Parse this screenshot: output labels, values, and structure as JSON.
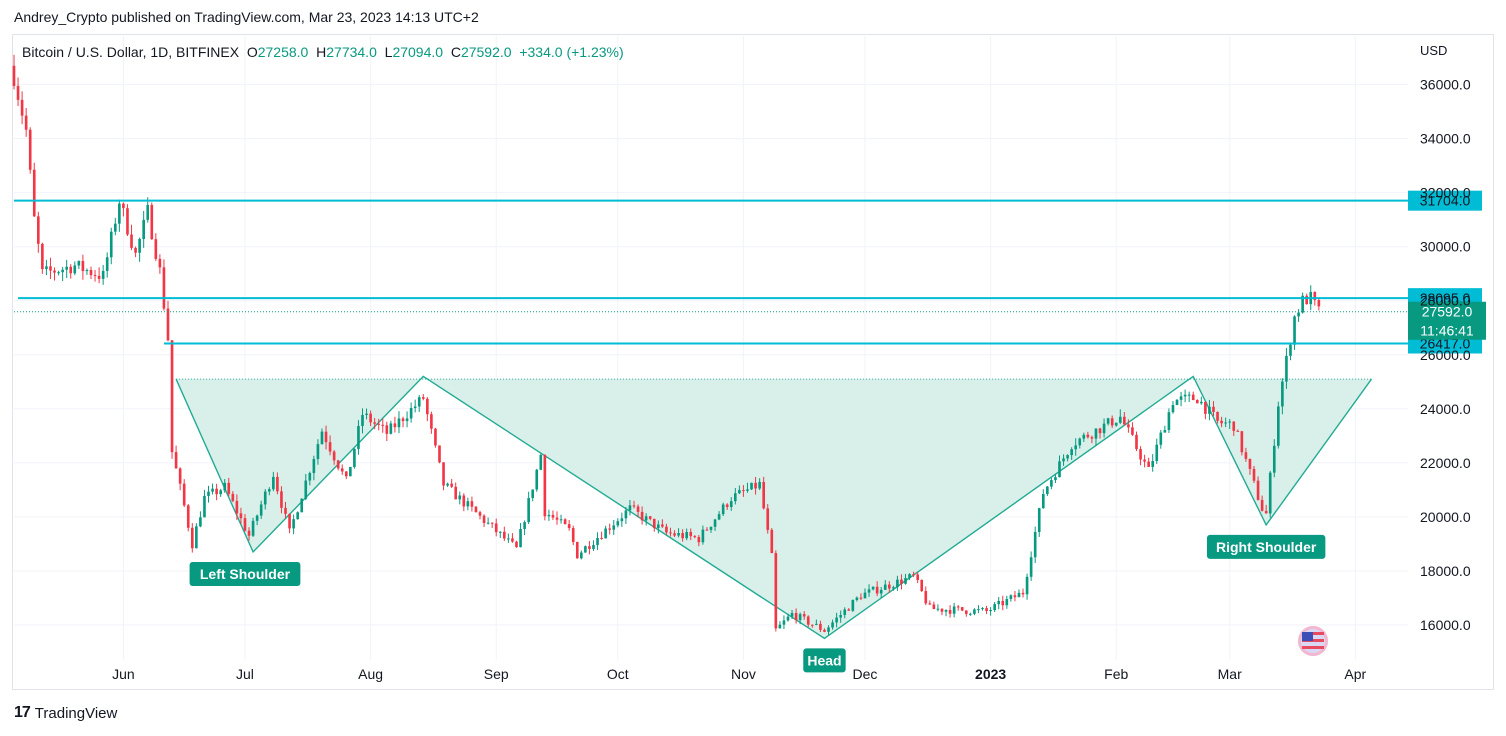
{
  "header": {
    "published": "Andrey_Crypto published on TradingView.com, Mar 23, 2023 14:13 UTC+2"
  },
  "legend": {
    "symbol": "Bitcoin / U.S. Dollar, 1D, BITFINEX",
    "o_label": "O",
    "o_value": "27258.0",
    "h_label": "H",
    "h_value": "27734.0",
    "l_label": "L",
    "l_value": "27094.0",
    "c_label": "C",
    "c_value": "27592.0",
    "change": "+334.0 (+1.23%)"
  },
  "axis": {
    "currency": "USD"
  },
  "footer": {
    "brand": "TradingView",
    "logo": "17"
  },
  "colors": {
    "up": "#089981",
    "down": "#f23645",
    "level": "#00bcd4",
    "pattern_fill": "#d7eee8",
    "pattern_line": "#22ab94"
  },
  "chart_data": {
    "type": "candlestick",
    "title": "Bitcoin / U.S. Dollar, 1D, BITFINEX",
    "ylabel": "USD",
    "ylim": [
      14700,
      37800
    ],
    "y_ticks": [
      16000,
      18000,
      20000,
      22000,
      24000,
      26000,
      28000,
      30000,
      32000,
      34000,
      36000
    ],
    "x_start": "2022-05-05",
    "x_end": "2023-04-14",
    "x_ticks": [
      {
        "date": "2022-06-01",
        "label": "Jun",
        "bold": false
      },
      {
        "date": "2022-07-01",
        "label": "Jul",
        "bold": false
      },
      {
        "date": "2022-08-01",
        "label": "Aug",
        "bold": false
      },
      {
        "date": "2022-09-01",
        "label": "Sep",
        "bold": false
      },
      {
        "date": "2022-10-01",
        "label": "Oct",
        "bold": false
      },
      {
        "date": "2022-11-01",
        "label": "Nov",
        "bold": false
      },
      {
        "date": "2022-12-01",
        "label": "Dec",
        "bold": false
      },
      {
        "date": "2023-01-01",
        "label": "2023",
        "bold": true
      },
      {
        "date": "2023-02-01",
        "label": "Feb",
        "bold": false
      },
      {
        "date": "2023-03-01",
        "label": "Mar",
        "bold": false
      },
      {
        "date": "2023-04-01",
        "label": "Apr",
        "bold": false
      }
    ],
    "close_anchors": [
      {
        "date": "2022-05-05",
        "close": 36300
      },
      {
        "date": "2022-05-08",
        "close": 34300
      },
      {
        "date": "2022-05-10",
        "close": 31000
      },
      {
        "date": "2022-05-12",
        "close": 29000
      },
      {
        "date": "2022-05-20",
        "close": 29300
      },
      {
        "date": "2022-05-27",
        "close": 28900
      },
      {
        "date": "2022-05-31",
        "close": 31700
      },
      {
        "date": "2022-06-04",
        "close": 29700
      },
      {
        "date": "2022-06-07",
        "close": 31300
      },
      {
        "date": "2022-06-10",
        "close": 29100
      },
      {
        "date": "2022-06-12",
        "close": 26600
      },
      {
        "date": "2022-06-13",
        "close": 22400
      },
      {
        "date": "2022-06-16",
        "close": 20400
      },
      {
        "date": "2022-06-18",
        "close": 19000
      },
      {
        "date": "2022-06-21",
        "close": 20700
      },
      {
        "date": "2022-06-26",
        "close": 21100
      },
      {
        "date": "2022-07-02",
        "close": 19300
      },
      {
        "date": "2022-07-08",
        "close": 21600
      },
      {
        "date": "2022-07-12",
        "close": 19400
      },
      {
        "date": "2022-07-20",
        "close": 23200
      },
      {
        "date": "2022-07-26",
        "close": 21300
      },
      {
        "date": "2022-07-30",
        "close": 23800
      },
      {
        "date": "2022-08-05",
        "close": 23100
      },
      {
        "date": "2022-08-14",
        "close": 24400
      },
      {
        "date": "2022-08-19",
        "close": 21200
      },
      {
        "date": "2022-08-28",
        "close": 20000
      },
      {
        "date": "2022-09-06",
        "close": 18800
      },
      {
        "date": "2022-09-12",
        "close": 22300
      },
      {
        "date": "2022-09-13",
        "close": 20200
      },
      {
        "date": "2022-09-19",
        "close": 19500
      },
      {
        "date": "2022-09-21",
        "close": 18600
      },
      {
        "date": "2022-10-04",
        "close": 20300
      },
      {
        "date": "2022-10-13",
        "close": 19400
      },
      {
        "date": "2022-10-21",
        "close": 19200
      },
      {
        "date": "2022-10-29",
        "close": 20700
      },
      {
        "date": "2022-11-05",
        "close": 21200
      },
      {
        "date": "2022-11-08",
        "close": 18500
      },
      {
        "date": "2022-11-09",
        "close": 15800
      },
      {
        "date": "2022-11-13",
        "close": 16400
      },
      {
        "date": "2022-11-21",
        "close": 15800
      },
      {
        "date": "2022-11-30",
        "close": 17100
      },
      {
        "date": "2022-12-13",
        "close": 17800
      },
      {
        "date": "2022-12-17",
        "close": 16600
      },
      {
        "date": "2022-12-31",
        "close": 16500
      },
      {
        "date": "2023-01-09",
        "close": 17200
      },
      {
        "date": "2023-01-14",
        "close": 20900
      },
      {
        "date": "2023-01-21",
        "close": 22700
      },
      {
        "date": "2023-02-02",
        "close": 23700
      },
      {
        "date": "2023-02-09",
        "close": 21700
      },
      {
        "date": "2023-02-15",
        "close": 24300
      },
      {
        "date": "2023-02-21",
        "close": 24400
      },
      {
        "date": "2023-02-26",
        "close": 23500
      },
      {
        "date": "2023-03-02",
        "close": 23400
      },
      {
        "date": "2023-03-09",
        "close": 20300
      },
      {
        "date": "2023-03-10",
        "close": 20100
      },
      {
        "date": "2023-03-13",
        "close": 24200
      },
      {
        "date": "2023-03-17",
        "close": 27400
      },
      {
        "date": "2023-03-19",
        "close": 28000
      },
      {
        "date": "2023-03-21",
        "close": 28100
      },
      {
        "date": "2023-03-23",
        "close": 27592
      }
    ],
    "levels": [
      {
        "name": "resistance-top",
        "value": 31704.0,
        "label": "31704.0",
        "start": "2022-05-05"
      },
      {
        "name": "resistance-mid",
        "value": 28095.0,
        "label": "28095.0",
        "start": "2022-05-06"
      },
      {
        "name": "neckline-breakout",
        "value": 26417.0,
        "label": "26417.0",
        "start": "2022-06-11"
      }
    ],
    "last_price": {
      "value": 27592.0,
      "label": "27592.0",
      "countdown": "11:46:41"
    },
    "pattern": {
      "name": "inverse head and shoulders",
      "neckline": 25100,
      "neckline_start": "2022-06-14",
      "neckline_end": "2023-04-05",
      "points": [
        {
          "date": "2022-06-14",
          "price": 25100
        },
        {
          "date": "2022-07-03",
          "price": 18700
        },
        {
          "date": "2022-08-14",
          "price": 25200
        },
        {
          "date": "2022-11-21",
          "price": 15500
        },
        {
          "date": "2023-02-20",
          "price": 25200
        },
        {
          "date": "2023-03-10",
          "price": 19700
        },
        {
          "date": "2023-04-05",
          "price": 25100
        }
      ],
      "labels": [
        {
          "text": "Left Shoulder",
          "date": "2022-07-01",
          "price": 18700
        },
        {
          "text": "Head",
          "date": "2022-11-21",
          "price": 15500
        },
        {
          "text": "Right Shoulder",
          "date": "2023-03-10",
          "price": 19700
        }
      ]
    }
  }
}
